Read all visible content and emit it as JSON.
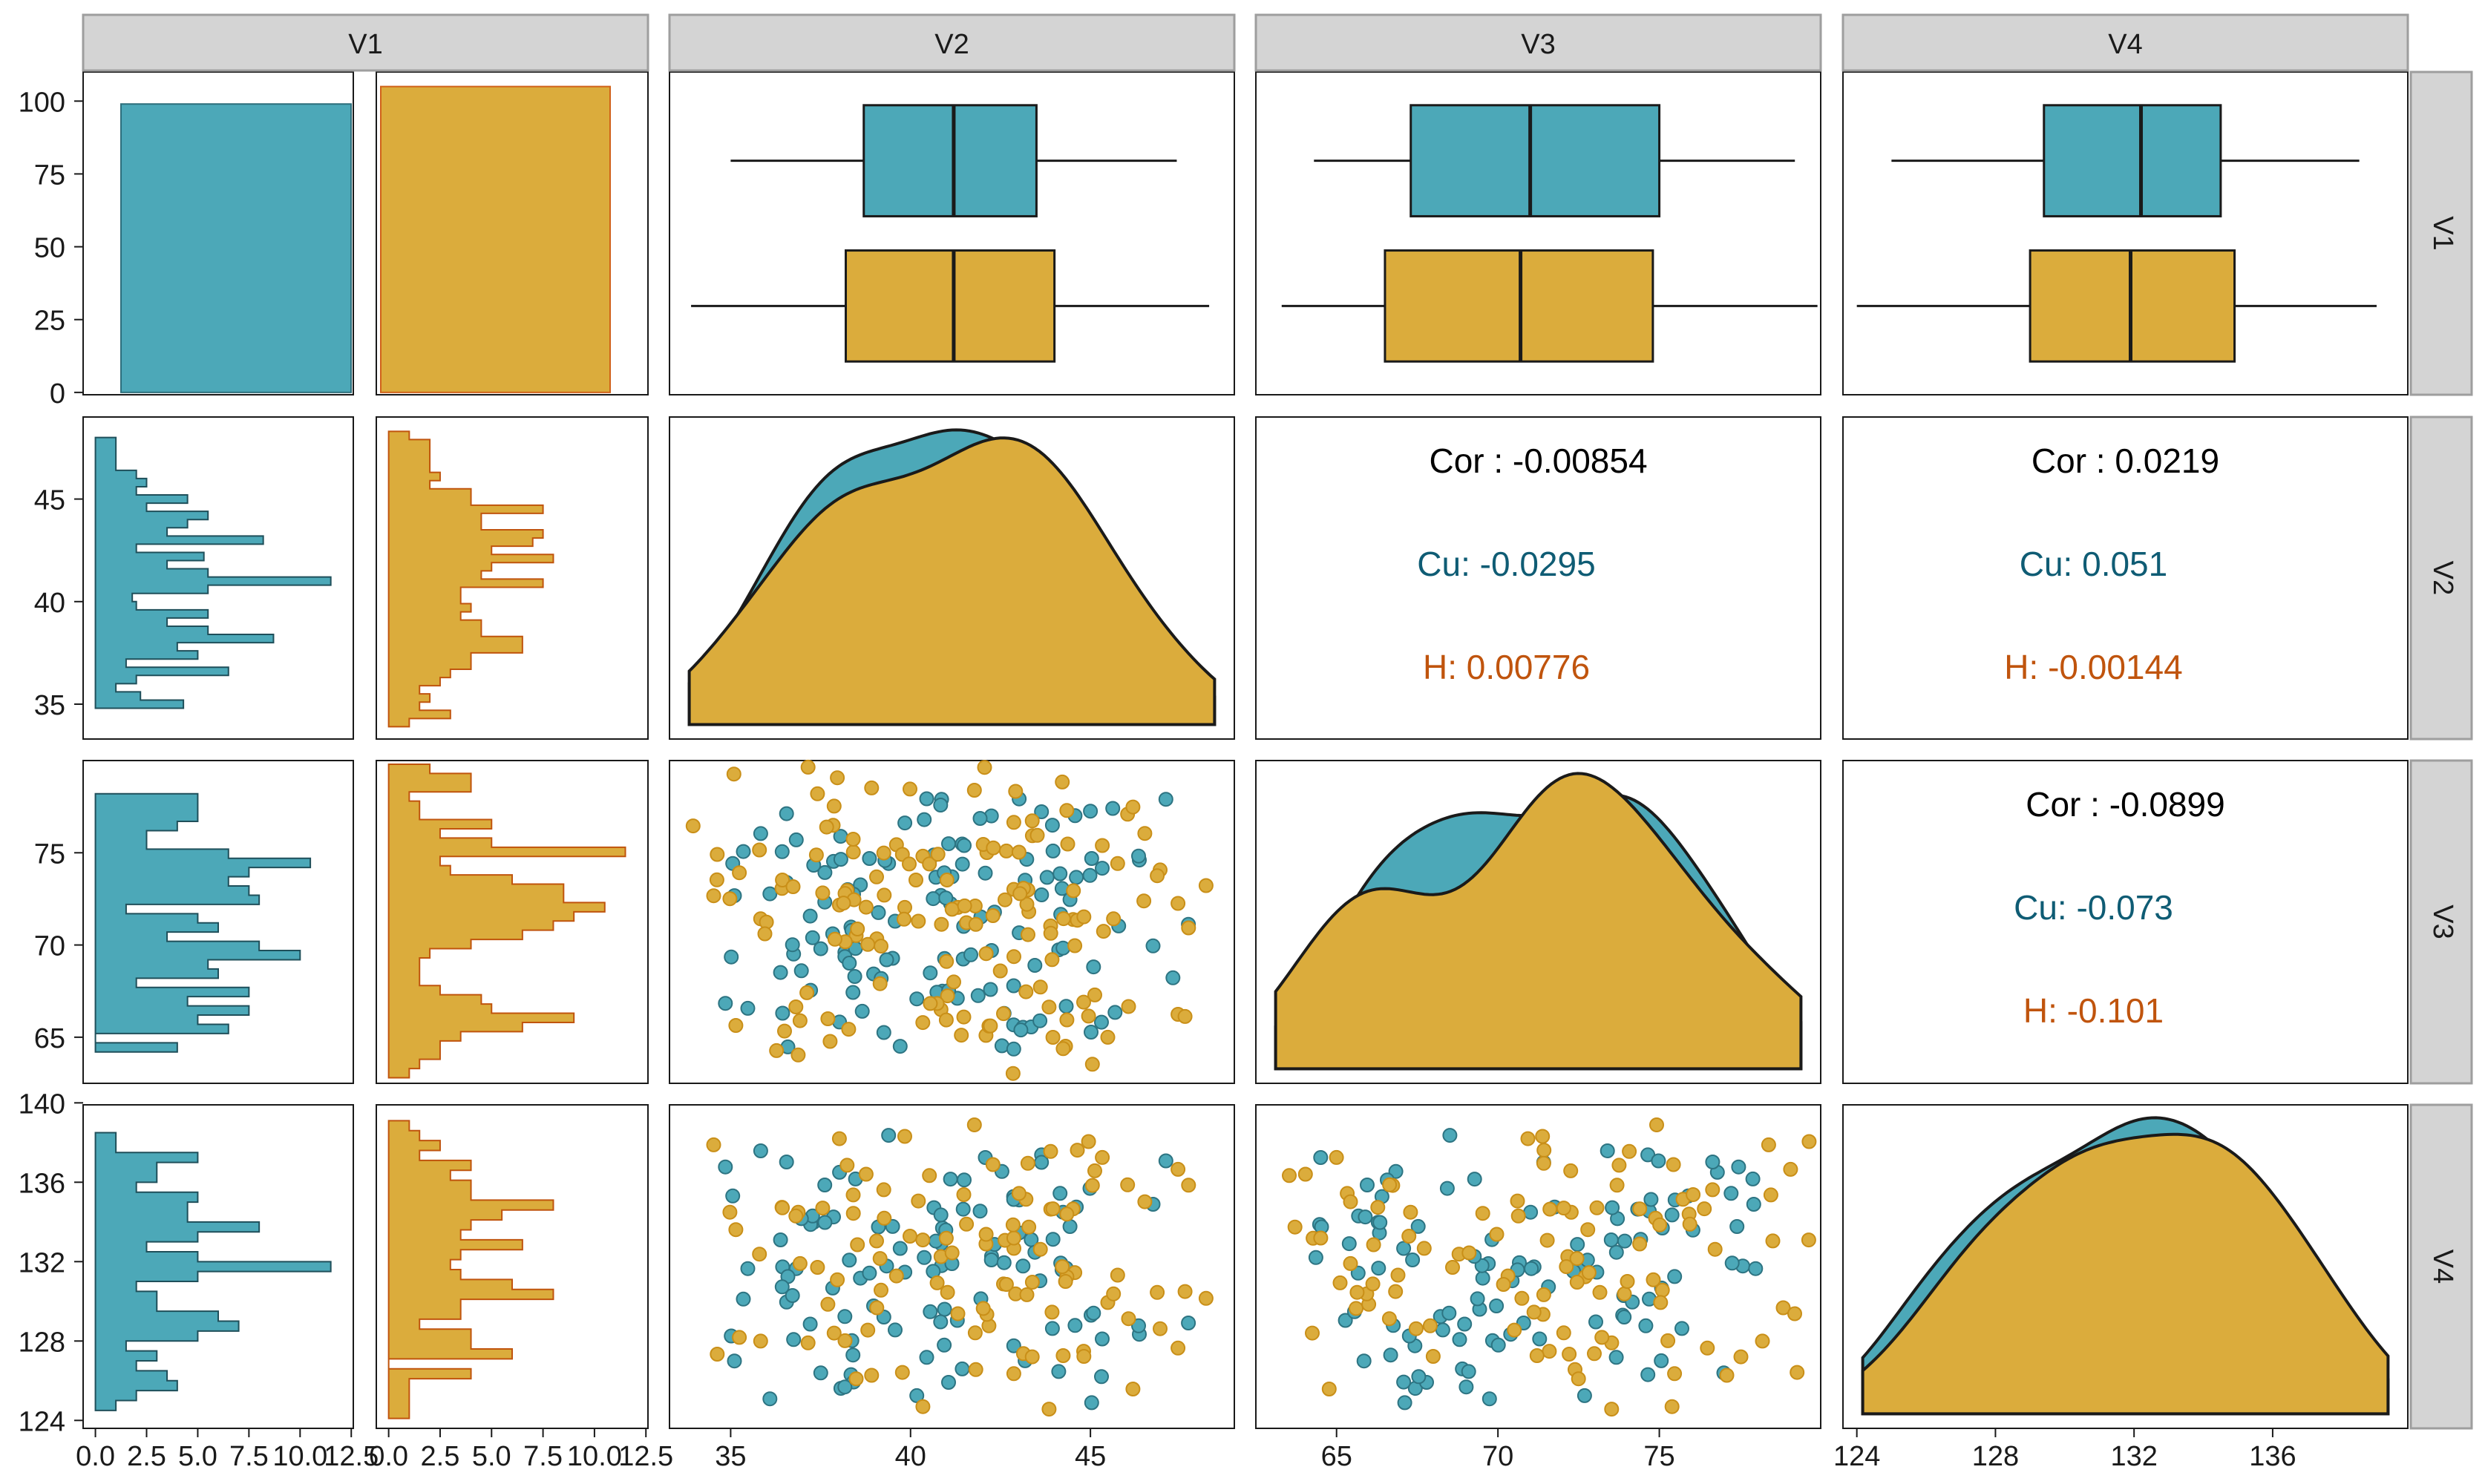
{
  "chart_data": {
    "type": "scatter-matrix",
    "variables": [
      "V1",
      "V2",
      "V3",
      "V4"
    ],
    "groups": [
      {
        "name": "Cu",
        "color": "#4ca8b8"
      },
      {
        "name": "H",
        "color": "#dbac3c"
      }
    ],
    "colors": {
      "cu": "#4ca8b8",
      "h": "#dbac3c",
      "cu_text": "#0f5c74",
      "h_text": "#c0540d",
      "strip_bg": "#d4d4d4",
      "strip_border": "#9e9e9e"
    },
    "axes": {
      "V1_count": {
        "range": [
          -0.8,
          110
        ],
        "ticks": [
          0,
          25,
          50,
          75,
          100
        ],
        "tick_labels": [
          "0",
          "25",
          "50",
          "75",
          "100"
        ]
      },
      "V1_hist_x": {
        "range": [
          -0.6,
          12.6
        ],
        "ticks": [
          0,
          2.5,
          5,
          7.5,
          10,
          12.5
        ],
        "tick_labels": [
          "0.0",
          "2.5",
          "5.0",
          "7.5",
          "10.0",
          "12.5"
        ]
      },
      "V2": {
        "range": [
          33.3,
          49.0
        ],
        "ticks": [
          35,
          40,
          45
        ],
        "tick_labels": [
          "35",
          "40",
          "45"
        ]
      },
      "V3": {
        "range": [
          62.5,
          80.0
        ],
        "ticks": [
          65,
          70,
          75
        ],
        "tick_labels": [
          "65",
          "70",
          "75"
        ]
      },
      "V4": {
        "range": [
          123.6,
          139.9
        ],
        "ticks": [
          124,
          128,
          132,
          136,
          140
        ],
        "tick_labels": [
          "124",
          "128",
          "132",
          "136",
          "140"
        ]
      }
    },
    "bar_counts": {
      "Cu": 99,
      "H": 105
    },
    "boxplots": {
      "V2": {
        "Cu": [
          35.0,
          38.7,
          41.2,
          43.5,
          47.4
        ],
        "H": [
          33.9,
          38.2,
          41.2,
          44.0,
          48.3
        ]
      },
      "V3": {
        "Cu": [
          64.3,
          67.3,
          71.0,
          75.0,
          79.2
        ],
        "H": [
          63.3,
          66.5,
          70.7,
          74.8,
          79.9
        ]
      },
      "V4": {
        "Cu": [
          125.0,
          129.4,
          132.2,
          134.5,
          138.5
        ],
        "H": [
          124.0,
          129.0,
          131.9,
          134.9,
          139.0
        ]
      }
    },
    "correlations": [
      {
        "pair": [
          "V2",
          "V3"
        ],
        "overall": "Cor : -0.00854",
        "Cu": "Cu: -0.0295",
        "H": "H: 0.00776"
      },
      {
        "pair": [
          "V2",
          "V4"
        ],
        "overall": "Cor : 0.0219",
        "Cu": "Cu: 0.051",
        "H": "H: -0.00144"
      },
      {
        "pair": [
          "V3",
          "V4"
        ],
        "overall": "Cor : -0.0899",
        "Cu": "Cu: -0.073",
        "H": "H: -0.101"
      }
    ],
    "histograms": {
      "V2": {
        "Cu": [
          [
            34.8,
            35.2,
            4.3
          ],
          [
            35.2,
            35.6,
            2.2
          ],
          [
            35.6,
            36.0,
            1.0
          ],
          [
            36.0,
            36.4,
            2.0
          ],
          [
            36.4,
            36.8,
            6.5
          ],
          [
            36.8,
            37.2,
            1.5
          ],
          [
            37.2,
            37.6,
            5.0
          ],
          [
            37.6,
            38.0,
            4.0
          ],
          [
            38.0,
            38.4,
            8.7
          ],
          [
            38.4,
            38.8,
            5.5
          ],
          [
            38.8,
            39.2,
            3.5
          ],
          [
            39.2,
            39.6,
            5.5
          ],
          [
            39.6,
            40.0,
            2.0
          ],
          [
            40.0,
            40.4,
            1.8
          ],
          [
            40.4,
            40.8,
            5.5
          ],
          [
            40.8,
            41.2,
            11.5
          ],
          [
            41.2,
            41.6,
            5.5
          ],
          [
            41.6,
            42.0,
            3.5
          ],
          [
            42.0,
            42.4,
            5.3
          ],
          [
            42.4,
            42.8,
            2.0
          ],
          [
            42.8,
            43.2,
            8.2
          ],
          [
            43.2,
            43.6,
            3.5
          ],
          [
            43.6,
            44.0,
            4.5
          ],
          [
            44.0,
            44.4,
            5.5
          ],
          [
            44.4,
            44.8,
            2.5
          ],
          [
            44.8,
            45.2,
            4.5
          ],
          [
            45.2,
            45.6,
            2.0
          ],
          [
            45.6,
            46.0,
            2.5
          ],
          [
            46.0,
            46.4,
            2.0
          ],
          [
            46.4,
            46.8,
            1.0
          ],
          [
            46.8,
            47.2,
            1.0
          ],
          [
            47.2,
            47.6,
            1.0
          ],
          [
            47.6,
            48.0,
            1.0
          ]
        ],
        "H": [
          [
            33.9,
            34.3,
            1.0
          ],
          [
            34.3,
            34.7,
            3.0
          ],
          [
            34.7,
            35.1,
            1.5
          ],
          [
            35.1,
            35.5,
            2.0
          ],
          [
            35.5,
            35.9,
            1.5
          ],
          [
            35.9,
            36.3,
            2.5
          ],
          [
            36.3,
            36.7,
            3.0
          ],
          [
            36.7,
            37.1,
            4.0
          ],
          [
            37.1,
            37.5,
            4.0
          ],
          [
            37.5,
            37.9,
            6.5
          ],
          [
            37.9,
            38.3,
            6.5
          ],
          [
            38.3,
            38.7,
            4.5
          ],
          [
            38.7,
            39.1,
            4.5
          ],
          [
            39.1,
            39.5,
            3.5
          ],
          [
            39.5,
            39.9,
            4.0
          ],
          [
            39.9,
            40.3,
            3.5
          ],
          [
            40.3,
            40.7,
            3.5
          ],
          [
            40.7,
            41.1,
            7.5
          ],
          [
            41.1,
            41.5,
            4.5
          ],
          [
            41.5,
            41.9,
            5.0
          ],
          [
            41.9,
            42.3,
            8.0
          ],
          [
            42.3,
            42.7,
            5.0
          ],
          [
            42.7,
            43.1,
            7.0
          ],
          [
            43.1,
            43.5,
            7.5
          ],
          [
            43.5,
            43.9,
            4.5
          ],
          [
            43.9,
            44.3,
            4.5
          ],
          [
            44.3,
            44.7,
            7.5
          ],
          [
            44.7,
            45.1,
            4.0
          ],
          [
            45.1,
            45.5,
            4.0
          ],
          [
            45.5,
            45.9,
            2.0
          ],
          [
            45.9,
            46.3,
            2.5
          ],
          [
            46.3,
            46.7,
            2.0
          ],
          [
            46.7,
            47.1,
            2.0
          ],
          [
            47.1,
            47.5,
            2.0
          ],
          [
            47.5,
            47.9,
            2.0
          ],
          [
            47.9,
            48.3,
            1.0
          ]
        ]
      },
      "V3": {
        "Cu": [
          [
            64.2,
            64.7,
            4.0
          ],
          [
            64.7,
            65.2,
            0.0
          ],
          [
            65.2,
            65.7,
            6.5
          ],
          [
            65.7,
            66.2,
            5.0
          ],
          [
            66.2,
            66.7,
            7.5
          ],
          [
            66.7,
            67.2,
            4.5
          ],
          [
            67.2,
            67.7,
            7.5
          ],
          [
            67.7,
            68.2,
            2.0
          ],
          [
            68.2,
            68.7,
            6.0
          ],
          [
            68.7,
            69.2,
            5.5
          ],
          [
            69.2,
            69.7,
            10.0
          ],
          [
            69.7,
            70.2,
            8.0
          ],
          [
            70.2,
            70.7,
            3.5
          ],
          [
            70.7,
            71.2,
            6.0
          ],
          [
            71.2,
            71.7,
            5.0
          ],
          [
            71.7,
            72.2,
            1.5
          ],
          [
            72.2,
            72.7,
            8.0
          ],
          [
            72.7,
            73.2,
            7.5
          ],
          [
            73.2,
            73.7,
            6.5
          ],
          [
            73.7,
            74.2,
            7.5
          ],
          [
            74.2,
            74.7,
            10.5
          ],
          [
            74.7,
            75.2,
            6.5
          ],
          [
            75.2,
            75.7,
            2.5
          ],
          [
            75.7,
            76.2,
            2.5
          ],
          [
            76.2,
            76.7,
            4.0
          ],
          [
            76.7,
            77.2,
            5.0
          ],
          [
            77.2,
            77.7,
            5.0
          ],
          [
            77.7,
            78.2,
            5.0
          ]
        ],
        "H": [
          [
            62.8,
            63.3,
            1.0
          ],
          [
            63.3,
            63.8,
            1.5
          ],
          [
            63.8,
            64.3,
            2.5
          ],
          [
            64.3,
            64.8,
            2.5
          ],
          [
            64.8,
            65.3,
            3.5
          ],
          [
            65.3,
            65.8,
            6.5
          ],
          [
            65.8,
            66.3,
            9.0
          ],
          [
            66.3,
            66.8,
            5.0
          ],
          [
            66.8,
            67.3,
            4.5
          ],
          [
            67.3,
            67.8,
            2.5
          ],
          [
            67.8,
            68.3,
            1.5
          ],
          [
            68.3,
            68.8,
            1.5
          ],
          [
            68.8,
            69.3,
            1.5
          ],
          [
            69.3,
            69.8,
            2.0
          ],
          [
            69.8,
            70.3,
            4.0
          ],
          [
            70.3,
            70.8,
            6.5
          ],
          [
            70.8,
            71.3,
            8.0
          ],
          [
            71.3,
            71.8,
            9.0
          ],
          [
            71.8,
            72.3,
            10.5
          ],
          [
            72.3,
            72.8,
            8.5
          ],
          [
            72.8,
            73.3,
            8.5
          ],
          [
            73.3,
            73.8,
            6.0
          ],
          [
            73.8,
            74.3,
            3.0
          ],
          [
            74.3,
            74.8,
            2.5
          ],
          [
            74.8,
            75.3,
            11.5
          ],
          [
            75.3,
            75.8,
            5.0
          ],
          [
            75.8,
            76.3,
            2.5
          ],
          [
            76.3,
            76.8,
            5.0
          ],
          [
            76.8,
            77.3,
            1.5
          ],
          [
            77.3,
            77.8,
            1.5
          ],
          [
            77.8,
            78.3,
            1.0
          ],
          [
            78.3,
            78.8,
            4.0
          ],
          [
            78.8,
            79.3,
            4.0
          ],
          [
            79.3,
            79.8,
            2.0
          ]
        ]
      },
      "V4": {
        "Cu": [
          [
            124.5,
            125.0,
            1.0
          ],
          [
            125.0,
            125.5,
            2.0
          ],
          [
            125.5,
            126.0,
            4.0
          ],
          [
            126.0,
            126.5,
            3.5
          ],
          [
            126.5,
            127.0,
            2.0
          ],
          [
            127.0,
            127.5,
            3.0
          ],
          [
            127.5,
            128.0,
            1.5
          ],
          [
            128.0,
            128.5,
            5.0
          ],
          [
            128.5,
            129.0,
            7.0
          ],
          [
            129.0,
            129.5,
            6.0
          ],
          [
            129.5,
            130.0,
            3.0
          ],
          [
            130.0,
            130.5,
            3.0
          ],
          [
            130.5,
            131.0,
            2.0
          ],
          [
            131.0,
            131.5,
            5.0
          ],
          [
            131.5,
            132.0,
            11.5
          ],
          [
            132.0,
            132.5,
            5.0
          ],
          [
            132.5,
            133.0,
            2.5
          ],
          [
            133.0,
            133.5,
            5.0
          ],
          [
            133.5,
            134.0,
            8.0
          ],
          [
            134.0,
            134.5,
            4.5
          ],
          [
            134.5,
            135.0,
            4.5
          ],
          [
            135.0,
            135.5,
            5.0
          ],
          [
            135.5,
            136.0,
            2.0
          ],
          [
            136.0,
            136.5,
            3.0
          ],
          [
            136.5,
            137.0,
            3.0
          ],
          [
            137.0,
            137.5,
            5.0
          ],
          [
            137.5,
            138.0,
            1.0
          ],
          [
            138.0,
            138.5,
            1.0
          ]
        ],
        "H": [
          [
            124.1,
            124.6,
            1.0
          ],
          [
            124.6,
            125.1,
            1.0
          ],
          [
            125.1,
            125.6,
            1.0
          ],
          [
            125.6,
            126.1,
            1.0
          ],
          [
            126.1,
            126.6,
            4.0
          ],
          [
            126.6,
            127.1,
            0.0
          ],
          [
            127.1,
            127.6,
            6.0
          ],
          [
            127.6,
            128.1,
            4.0
          ],
          [
            128.1,
            128.6,
            4.0
          ],
          [
            128.6,
            129.1,
            1.5
          ],
          [
            129.1,
            129.6,
            3.5
          ],
          [
            129.6,
            130.1,
            3.5
          ],
          [
            130.1,
            130.6,
            8.0
          ],
          [
            130.6,
            131.1,
            6.0
          ],
          [
            131.1,
            131.6,
            3.5
          ],
          [
            131.6,
            132.1,
            3.0
          ],
          [
            132.1,
            132.6,
            3.5
          ],
          [
            132.6,
            133.1,
            6.5
          ],
          [
            133.1,
            133.6,
            3.5
          ],
          [
            133.6,
            134.1,
            4.0
          ],
          [
            134.1,
            134.6,
            5.5
          ],
          [
            134.6,
            135.1,
            8.0
          ],
          [
            135.1,
            135.6,
            4.0
          ],
          [
            135.6,
            136.1,
            4.0
          ],
          [
            136.1,
            136.6,
            3.0
          ],
          [
            136.6,
            137.1,
            4.0
          ],
          [
            137.1,
            137.6,
            1.5
          ],
          [
            137.6,
            138.1,
            2.5
          ],
          [
            138.1,
            138.6,
            1.5
          ],
          [
            138.6,
            139.1,
            1.0
          ]
        ]
      }
    }
  }
}
